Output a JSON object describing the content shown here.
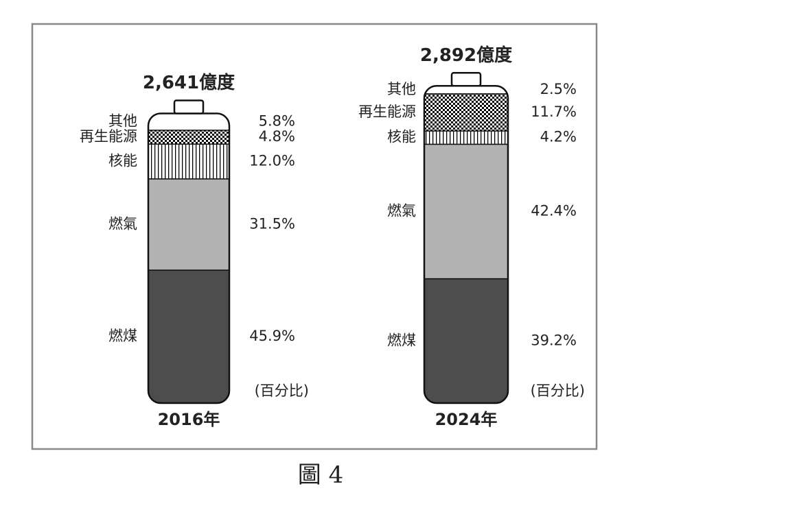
{
  "chart_data": {
    "type": "battery",
    "categories": [
      "2016年",
      "2024年"
    ],
    "totals": [
      2641,
      2892
    ],
    "total_labels": [
      "2,641億度",
      "2,892億度"
    ],
    "unit_label": "(百分比)",
    "series": [
      {
        "name": "燃煤",
        "color": "#4d4d4d",
        "values": [
          45.9,
          39.2
        ],
        "value_labels": [
          "45.9%",
          "39.2%"
        ]
      },
      {
        "name": "燃氣",
        "color": "#b3b3b3",
        "values": [
          31.5,
          42.4
        ],
        "value_labels": [
          "31.5%",
          "42.4%"
        ]
      },
      {
        "name": "核能",
        "color": "#000000",
        "pattern": "stripes",
        "values": [
          12.0,
          4.2
        ],
        "value_labels": [
          "12.0%",
          "4.2%"
        ]
      },
      {
        "name": "再生能源",
        "color": "#000000",
        "pattern": "checker",
        "values": [
          4.8,
          11.7
        ],
        "value_labels": [
          "4.8%",
          "11.7%"
        ]
      },
      {
        "name": "其他",
        "color": "#ffffff",
        "values": [
          5.8,
          2.5
        ],
        "value_labels": [
          "5.8%",
          "2.5%"
        ]
      }
    ],
    "caption": "圖 4"
  }
}
